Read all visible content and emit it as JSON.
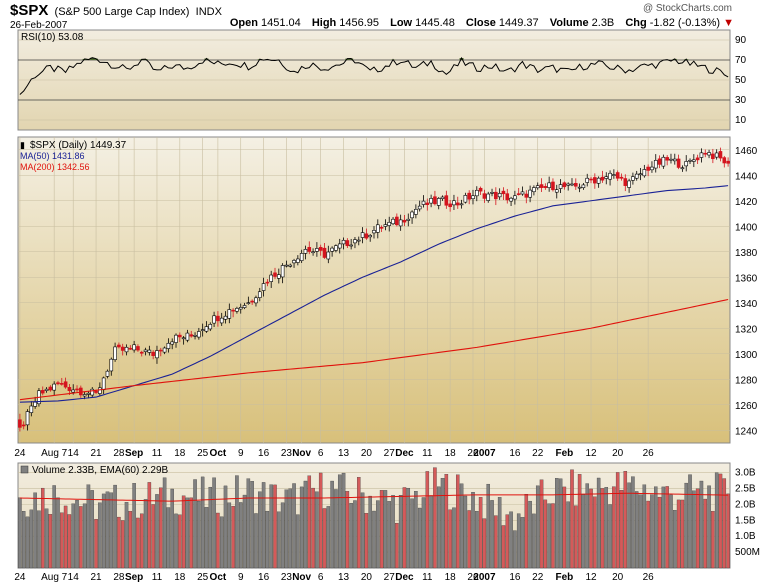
{
  "header": {
    "symbol": "$SPX",
    "description": "(S&P 500 Large Cap Index)",
    "exchange": "INDX",
    "date": "26-Feb-2007",
    "watermark": "@ StockCharts.com",
    "quote": {
      "open_label": "Open",
      "open": "1451.04",
      "high_label": "High",
      "high": "1456.95",
      "low_label": "Low",
      "low": "1445.48",
      "close_label": "Close",
      "close": "1449.37",
      "volume_label": "Volume",
      "volume": "2.3B",
      "chg_label": "Chg",
      "chg": "-1.82 (-0.13%)"
    }
  },
  "colors": {
    "up_candle": "#ffffff",
    "down_candle": "#d4141e",
    "ma50": "#1a2296",
    "ma200": "#e0120c",
    "rsi_line": "#000000",
    "rsi_fill": "#4d6b2e",
    "volume_up": "#808080",
    "volume_down": "#d45a5a",
    "ema_line": "#e0120c",
    "panel_bg_top": "#f3efe2",
    "panel_bg_bottom": "#d9c27c"
  },
  "chart_data": [
    {
      "type": "line",
      "panel": "rsi",
      "legend": "RSI(10) 53.08",
      "last_value": 53.08,
      "yticks": [
        10,
        30,
        50,
        70,
        90
      ],
      "ylim": [
        0,
        100
      ],
      "bands": [
        30,
        70
      ],
      "x_index": [
        0,
        4,
        8,
        12,
        16,
        20,
        24,
        28,
        32,
        36,
        40,
        44,
        48,
        52,
        56,
        60,
        64,
        68,
        72,
        76,
        80,
        84,
        88,
        92,
        96,
        100,
        104,
        108,
        112,
        116,
        120,
        124,
        128,
        132,
        136,
        140,
        144,
        148,
        152,
        156,
        160,
        164,
        168,
        172,
        176,
        180,
        184,
        186
      ],
      "values": [
        35,
        55,
        62,
        58,
        68,
        72,
        66,
        60,
        70,
        58,
        64,
        62,
        70,
        66,
        68,
        64,
        72,
        70,
        58,
        66,
        62,
        66,
        70,
        58,
        64,
        70,
        62,
        68,
        56,
        68,
        62,
        64,
        58,
        66,
        60,
        62,
        58,
        64,
        66,
        62,
        60,
        64,
        66,
        70,
        66,
        62,
        58,
        53.08
      ]
    },
    {
      "type": "candlestick",
      "panel": "price",
      "legend": [
        "$SPX (Daily) 1449.37",
        "MA(50) 1431.86",
        "MA(200) 1342.56"
      ],
      "ylim": [
        1230,
        1470
      ],
      "yticks": [
        1240,
        1260,
        1280,
        1300,
        1320,
        1340,
        1360,
        1380,
        1400,
        1420,
        1440,
        1460
      ],
      "xtick_labels": [
        "24",
        "Aug 7",
        "14",
        "21",
        "28",
        "Sep",
        "11",
        "18",
        "25",
        "Oct",
        "9",
        "16",
        "23",
        "Nov",
        "6",
        "13",
        "20",
        "27",
        "Dec",
        "11",
        "18",
        "26",
        "2007",
        "16",
        "22",
        "Feb",
        "12",
        "20",
        "26"
      ],
      "close_anchors": {
        "index": [
          0,
          5,
          10,
          15,
          20,
          25,
          30,
          35,
          40,
          45,
          50,
          55,
          60,
          65,
          70,
          75,
          80,
          85,
          90,
          95,
          100,
          105,
          110,
          115,
          120,
          125,
          130,
          135,
          140,
          145,
          150,
          155,
          160,
          165,
          170,
          175,
          180,
          186
        ],
        "close": [
          1240,
          1268,
          1276,
          1272,
          1268,
          1302,
          1304,
          1300,
          1312,
          1314,
          1326,
          1334,
          1340,
          1358,
          1370,
          1382,
          1378,
          1386,
          1392,
          1400,
          1404,
          1416,
          1420,
          1418,
          1426,
          1424,
          1422,
          1428,
          1432,
          1430,
          1436,
          1440,
          1434,
          1446,
          1452,
          1448,
          1459,
          1449.37
        ]
      },
      "ma50_anchors": {
        "index": [
          0,
          10,
          20,
          30,
          40,
          50,
          60,
          70,
          80,
          90,
          100,
          110,
          120,
          130,
          140,
          150,
          160,
          170,
          180,
          186
        ],
        "value": [
          1262,
          1263,
          1266,
          1275,
          1284,
          1298,
          1314,
          1330,
          1346,
          1360,
          1372,
          1386,
          1398,
          1408,
          1416,
          1420,
          1424,
          1428,
          1430,
          1431.86
        ]
      },
      "ma200_anchors": {
        "index": [
          0,
          30,
          60,
          90,
          120,
          150,
          186
        ],
        "value": [
          1264,
          1275,
          1285,
          1293,
          1305,
          1320,
          1342.56
        ]
      }
    },
    {
      "type": "bar",
      "panel": "volume",
      "legend": "Volume 2.33B, EMA(60) 2.29B",
      "yticks": [
        "500M",
        "1.0B",
        "1.5B",
        "2.0B",
        "2.5B",
        "3.0B"
      ],
      "ylim": [
        0,
        3.3
      ],
      "last_volume": 2.33,
      "ema_last": 2.29,
      "volume_anchors": {
        "index": [
          0,
          10,
          20,
          30,
          40,
          50,
          60,
          70,
          80,
          90,
          100,
          110,
          120,
          130,
          140,
          150,
          160,
          170,
          180,
          186
        ],
        "value": [
          2.2,
          2.3,
          2.0,
          2.1,
          2.3,
          2.2,
          2.4,
          2.1,
          2.5,
          2.3,
          2.0,
          2.6,
          2.2,
          1.6,
          2.4,
          2.5,
          2.6,
          2.3,
          2.4,
          2.33
        ]
      },
      "ema_anchors": {
        "index": [
          0,
          20,
          40,
          60,
          80,
          100,
          120,
          140,
          160,
          186
        ],
        "value": [
          2.2,
          2.15,
          2.1,
          2.2,
          2.2,
          2.25,
          2.3,
          2.3,
          2.35,
          2.29
        ]
      }
    }
  ]
}
